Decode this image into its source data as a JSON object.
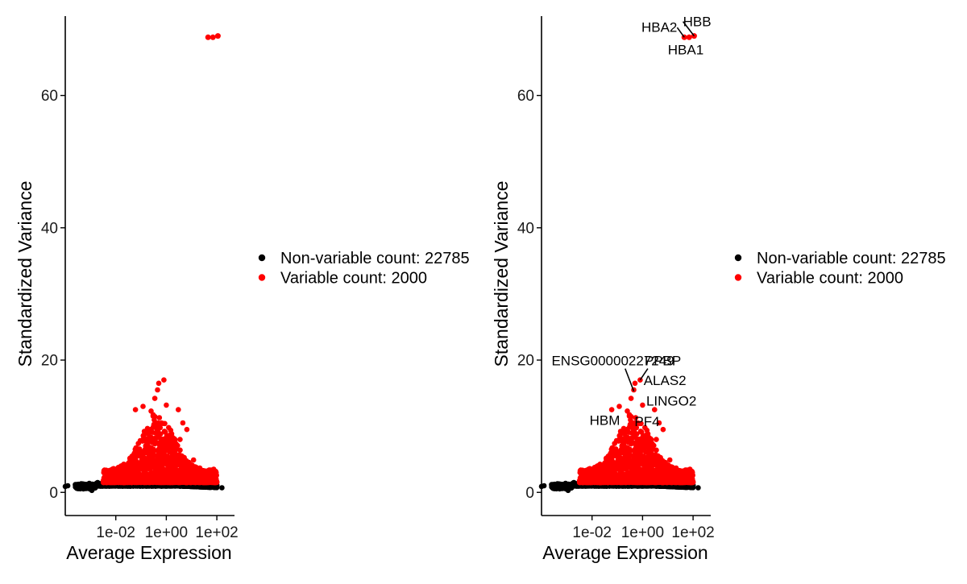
{
  "chart_data": [
    {
      "type": "scatter",
      "xlabel": "Average Expression",
      "ylabel": "Standardized Variance",
      "x_scale": "log10",
      "xlim": [
        0.0001,
        500
      ],
      "ylim": [
        -3.5,
        72
      ],
      "x_ticks": [
        {
          "value": 0.01,
          "label": "1e-02"
        },
        {
          "value": 1,
          "label": "1e+00"
        },
        {
          "value": 100,
          "label": "1e+02"
        }
      ],
      "y_ticks": [
        {
          "value": 0,
          "label": "0"
        },
        {
          "value": 20,
          "label": "20"
        },
        {
          "value": 40,
          "label": "40"
        },
        {
          "value": 60,
          "label": "60"
        }
      ],
      "series": [
        {
          "name": "Non-variable count: 22785",
          "color": "#000000"
        },
        {
          "name": "Variable count: 2000",
          "color": "#ff0000"
        }
      ],
      "highlight_points": [
        {
          "name": "HBB",
          "x": 110,
          "y": 69.0
        },
        {
          "name": "HBA1",
          "x": 70,
          "y": 68.8
        },
        {
          "name": "HBA2",
          "x": 45,
          "y": 68.8
        }
      ],
      "annotations": []
    },
    {
      "type": "scatter",
      "xlabel": "Average Expression",
      "ylabel": "Standardized Variance",
      "x_scale": "log10",
      "xlim": [
        0.0001,
        500
      ],
      "ylim": [
        -3.5,
        72
      ],
      "x_ticks": [
        {
          "value": 0.01,
          "label": "1e-02"
        },
        {
          "value": 1,
          "label": "1e+00"
        },
        {
          "value": 100,
          "label": "1e+02"
        }
      ],
      "y_ticks": [
        {
          "value": 0,
          "label": "0"
        },
        {
          "value": 20,
          "label": "20"
        },
        {
          "value": 40,
          "label": "40"
        },
        {
          "value": 60,
          "label": "60"
        }
      ],
      "series": [
        {
          "name": "Non-variable count: 22785",
          "color": "#000000"
        },
        {
          "name": "Variable count: 2000",
          "color": "#ff0000"
        }
      ],
      "highlight_points": [
        {
          "name": "HBB",
          "x": 110,
          "y": 69.0
        },
        {
          "name": "HBA1",
          "x": 70,
          "y": 68.8
        },
        {
          "name": "HBA2",
          "x": 45,
          "y": 68.8
        }
      ],
      "annotations": [
        {
          "label": "HBB",
          "x": 110,
          "y": 69.0,
          "lx": 40,
          "ly": 70.5,
          "anchor": "start",
          "leader": true
        },
        {
          "label": "HBA2",
          "x": 45,
          "y": 68.8,
          "lx": 0.9,
          "ly": 69.6,
          "anchor": "start",
          "leader": true
        },
        {
          "label": "HBA1",
          "x": 70,
          "y": 68.8,
          "lx": 10,
          "ly": 66.2,
          "anchor": "start",
          "leader": false
        },
        {
          "label": "ENSG00000227249",
          "x": 0.45,
          "y": 15.3,
          "lx": 0.00025,
          "ly": 19.2,
          "anchor": "start",
          "leader": true
        },
        {
          "label": "PPBP",
          "x": 0.8,
          "y": 17.0,
          "lx": 1.2,
          "ly": 19.2,
          "anchor": "start",
          "leader": true
        },
        {
          "label": "ALAS2",
          "x": 1.5,
          "y": 15.5,
          "lx": 1.1,
          "ly": 16.2,
          "anchor": "start",
          "leader": false
        },
        {
          "label": "LINGO2",
          "x": 1.0,
          "y": 13.2,
          "lx": 1.4,
          "ly": 13.1,
          "anchor": "start",
          "leader": false
        },
        {
          "label": "HBM",
          "x": 0.3,
          "y": 11.2,
          "lx": 0.008,
          "ly": 10.2,
          "anchor": "start",
          "leader": false
        },
        {
          "label": "PF4",
          "x": 0.7,
          "y": 10.9,
          "lx": 0.48,
          "ly": 10.0,
          "anchor": "start",
          "leader": false
        }
      ]
    }
  ]
}
